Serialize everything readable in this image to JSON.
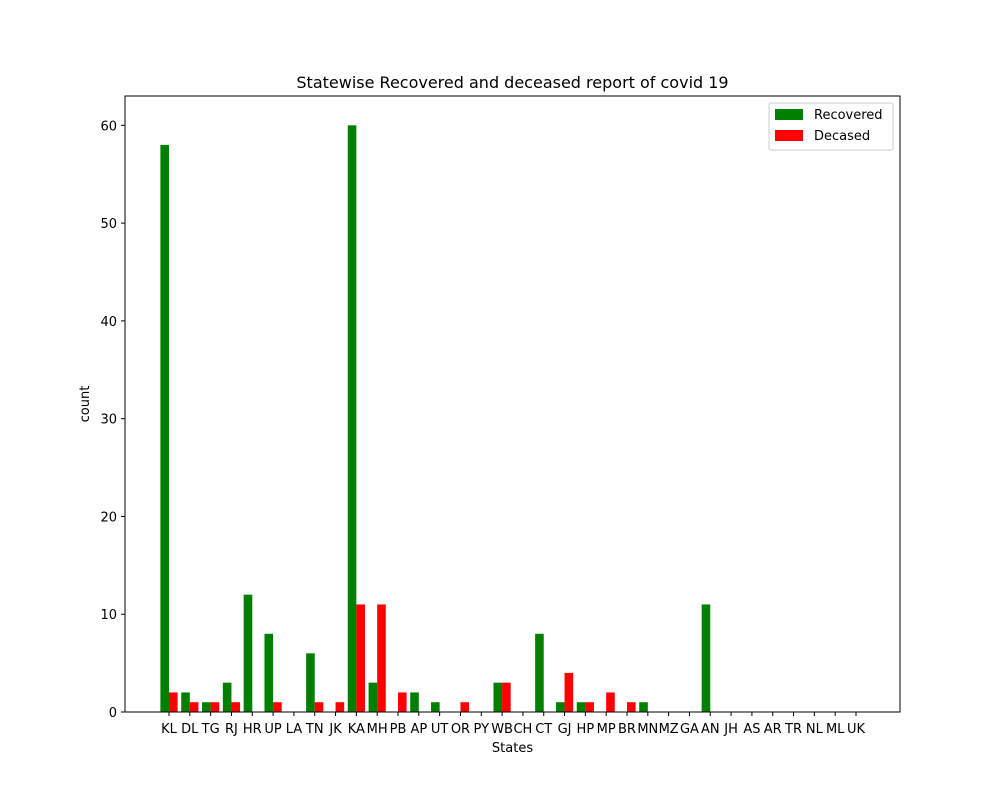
{
  "chart_data": {
    "type": "bar",
    "title": "Statewise Recovered and deceased report of covid 19",
    "xlabel": "States",
    "ylabel": "count",
    "ylim": [
      0,
      63
    ],
    "yticks": [
      0,
      10,
      20,
      30,
      40,
      50,
      60
    ],
    "grid": false,
    "legend_position": "top-right",
    "categories": [
      "KL",
      "DL",
      "TG",
      "RJ",
      "HR",
      "UP",
      "LA",
      "TN",
      "JK",
      "KA",
      "MH",
      "PB",
      "AP",
      "UT",
      "OR",
      "PY",
      "WB",
      "CH",
      "CT",
      "GJ",
      "HP",
      "MP",
      "BR",
      "MN",
      "MZ",
      "GA",
      "AN",
      "JH",
      "AS",
      "AR",
      "TR",
      "NL",
      "ML",
      "UK"
    ],
    "series": [
      {
        "name": "Recovered",
        "color": "#008000",
        "values": [
          58,
          2,
          1,
          3,
          12,
          8,
          0,
          6,
          0,
          60,
          3,
          0,
          2,
          1,
          0,
          0,
          3,
          0,
          8,
          1,
          1,
          0,
          0,
          1,
          0,
          0,
          11,
          0,
          0,
          0,
          0,
          0,
          0,
          0
        ]
      },
      {
        "name": "Decased",
        "color": "#ff0000",
        "values": [
          2,
          1,
          1,
          1,
          0,
          1,
          0,
          1,
          1,
          11,
          11,
          2,
          0,
          0,
          1,
          0,
          3,
          0,
          0,
          4,
          1,
          2,
          1,
          0,
          0,
          0,
          0,
          0,
          0,
          0,
          0,
          0,
          0,
          0
        ]
      }
    ]
  }
}
